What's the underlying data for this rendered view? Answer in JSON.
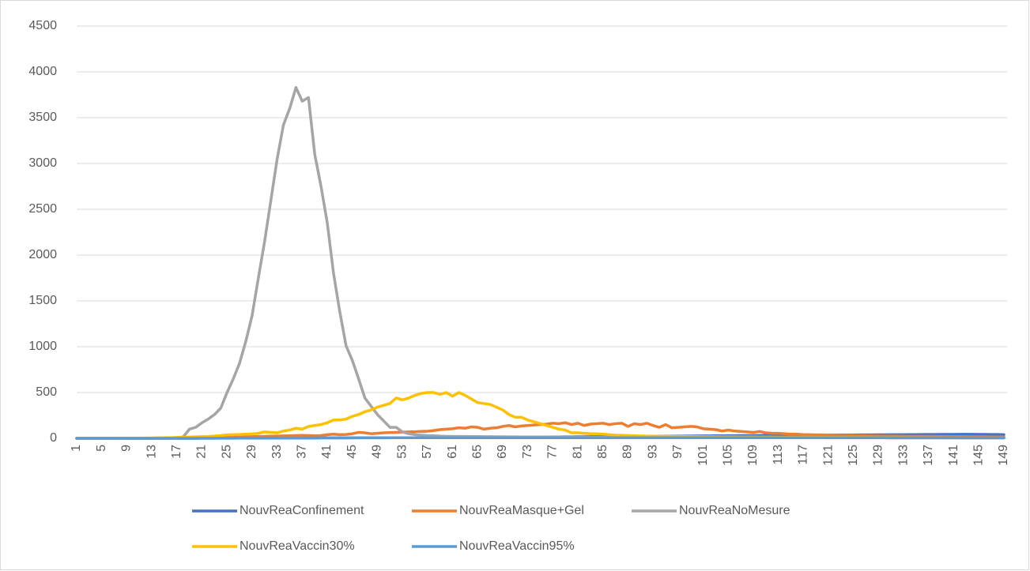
{
  "chart_data": {
    "type": "line",
    "categories": [
      1,
      null,
      null,
      null,
      5,
      null,
      null,
      null,
      9,
      null,
      null,
      null,
      13,
      null,
      null,
      null,
      17,
      null,
      null,
      null,
      21,
      null,
      null,
      null,
      25,
      null,
      null,
      null,
      29,
      null,
      null,
      null,
      33,
      null,
      null,
      null,
      37,
      null,
      null,
      null,
      41,
      null,
      null,
      null,
      45,
      null,
      null,
      null,
      49,
      null,
      null,
      null,
      53,
      null,
      null,
      null,
      57,
      null,
      null,
      null,
      61,
      null,
      null,
      null,
      65,
      null,
      null,
      null,
      69,
      null,
      null,
      null,
      73,
      null,
      null,
      null,
      77,
      null,
      null,
      null,
      81,
      null,
      null,
      null,
      85,
      null,
      null,
      null,
      89,
      null,
      null,
      null,
      93,
      null,
      null,
      null,
      97,
      null,
      null,
      null,
      101,
      null,
      null,
      null,
      105,
      null,
      null,
      null,
      109,
      null,
      null,
      null,
      113,
      null,
      null,
      null,
      117,
      null,
      null,
      null,
      121,
      null,
      null,
      null,
      125,
      null,
      null,
      null,
      129,
      null,
      null,
      null,
      133,
      null,
      null,
      null,
      137,
      null,
      null,
      null,
      141,
      null,
      null,
      null,
      145,
      null,
      null,
      null,
      149
    ],
    "series": [
      {
        "name": "NouvReaConfinement",
        "color": "#4472c4",
        "values": [
          0,
          0,
          0,
          0,
          0,
          0,
          0,
          0,
          0,
          0,
          0,
          0,
          0,
          0,
          0,
          0,
          0,
          0,
          0,
          0,
          1,
          1,
          1,
          1,
          1,
          1,
          2,
          2,
          2,
          2,
          2,
          2,
          3,
          3,
          3,
          3,
          3,
          3,
          3,
          4,
          4,
          4,
          4,
          4,
          5,
          5,
          5,
          5,
          5,
          5,
          6,
          6,
          6,
          6,
          6,
          7,
          7,
          7,
          7,
          8,
          8,
          8,
          9,
          9,
          10,
          10,
          10,
          11,
          11,
          12,
          12,
          12,
          13,
          13,
          14,
          14,
          15,
          15,
          16,
          16,
          17,
          17,
          18,
          18,
          19,
          19,
          20,
          20,
          21,
          21,
          22,
          22,
          23,
          23,
          24,
          24,
          25,
          25,
          26,
          26,
          27,
          27,
          28,
          28,
          29,
          29,
          30,
          30,
          31,
          31,
          32,
          32,
          33,
          33,
          34,
          34,
          35,
          35,
          35,
          36,
          36,
          36,
          37,
          37,
          37,
          38,
          38,
          38,
          39,
          39,
          40,
          40,
          40,
          41,
          41,
          42,
          42,
          42,
          43,
          43,
          43,
          44,
          44,
          44,
          43,
          43,
          42,
          42,
          40
        ]
      },
      {
        "name": "NouvReaMasque+Gel",
        "color": "#ed7d31",
        "values": [
          0,
          0,
          0,
          0,
          0,
          0,
          0,
          0,
          0,
          0,
          1,
          1,
          1,
          2,
          2,
          3,
          3,
          4,
          5,
          6,
          7,
          8,
          9,
          10,
          12,
          13,
          15,
          17,
          18,
          20,
          22,
          24,
          25,
          27,
          28,
          30,
          32,
          30,
          28,
          30,
          40,
          45,
          40,
          42,
          50,
          65,
          60,
          50,
          55,
          60,
          62,
          65,
          68,
          70,
          72,
          75,
          78,
          85,
          95,
          100,
          105,
          115,
          110,
          125,
          120,
          100,
          110,
          115,
          130,
          140,
          125,
          135,
          140,
          145,
          150,
          155,
          165,
          160,
          170,
          150,
          165,
          140,
          155,
          160,
          165,
          150,
          160,
          165,
          130,
          160,
          150,
          165,
          140,
          120,
          150,
          115,
          120,
          125,
          130,
          125,
          105,
          100,
          95,
          80,
          90,
          80,
          75,
          70,
          65,
          75,
          60,
          55,
          55,
          50,
          45,
          45,
          40,
          40,
          38,
          38,
          36,
          35,
          33,
          32,
          30,
          30,
          28,
          27,
          26,
          25,
          25,
          24,
          23,
          22,
          22,
          21,
          21,
          20,
          20,
          19,
          19,
          18,
          18,
          17,
          17,
          16,
          16,
          15,
          15
        ]
      },
      {
        "name": "NouvReaNoMesure",
        "color": "#a5a5a5",
        "values": [
          0,
          0,
          0,
          0,
          0,
          0,
          0,
          0,
          0,
          1,
          1,
          1,
          2,
          3,
          4,
          5,
          8,
          15,
          100,
          120,
          170,
          210,
          260,
          330,
          500,
          650,
          820,
          1060,
          1340,
          1750,
          2150,
          2600,
          3050,
          3420,
          3600,
          3830,
          3680,
          3720,
          3100,
          2750,
          2350,
          1800,
          1380,
          1010,
          850,
          650,
          440,
          350,
          260,
          190,
          120,
          120,
          70,
          50,
          40,
          35,
          30,
          28,
          25,
          22,
          21,
          20,
          20,
          19,
          19,
          18,
          18,
          17,
          17,
          16,
          16,
          15,
          15,
          15,
          14,
          14,
          14,
          13,
          13,
          13,
          12,
          12,
          12,
          12,
          11,
          11,
          11,
          11,
          10,
          10,
          10,
          10,
          10,
          9,
          9,
          9,
          9,
          9,
          8,
          8,
          8,
          8,
          8,
          8,
          8,
          7,
          7,
          7,
          7,
          7,
          7,
          7,
          6,
          6,
          6,
          6,
          6,
          6,
          6,
          6,
          5,
          5,
          5,
          5,
          5,
          5,
          5,
          5,
          5,
          5,
          4,
          4,
          4,
          4,
          4,
          4,
          4,
          4,
          4,
          4,
          4,
          3,
          3,
          3,
          3,
          3,
          3,
          3,
          3
        ]
      },
      {
        "name": "NouvReaVaccin30%",
        "color": "#ffc000",
        "values": [
          0,
          0,
          0,
          0,
          0,
          0,
          1,
          1,
          1,
          2,
          2,
          3,
          4,
          5,
          6,
          8,
          10,
          12,
          14,
          16,
          18,
          20,
          25,
          30,
          38,
          40,
          42,
          45,
          48,
          55,
          70,
          65,
          60,
          80,
          90,
          110,
          100,
          130,
          140,
          150,
          170,
          200,
          200,
          210,
          240,
          260,
          290,
          310,
          340,
          360,
          380,
          440,
          420,
          440,
          470,
          490,
          500,
          500,
          480,
          500,
          460,
          500,
          470,
          430,
          390,
          380,
          370,
          340,
          310,
          260,
          230,
          230,
          200,
          180,
          160,
          140,
          120,
          100,
          90,
          60,
          60,
          55,
          50,
          50,
          45,
          40,
          35,
          33,
          30,
          28,
          26,
          25,
          24,
          22,
          21,
          20,
          20,
          19,
          19,
          18,
          18,
          17,
          17,
          16,
          16,
          16,
          15,
          15,
          15,
          14,
          14,
          14,
          13,
          13,
          13,
          12,
          12,
          12,
          12,
          11,
          11,
          11,
          11,
          10,
          10,
          10,
          10,
          10,
          9,
          9,
          9,
          9,
          9,
          8,
          8,
          8,
          8,
          8,
          8,
          7,
          7,
          7,
          7,
          7,
          7,
          6,
          6,
          6,
          6
        ]
      },
      {
        "name": "NouvReaVaccin95%",
        "color": "#5b9bd5",
        "values": [
          0,
          0,
          0,
          0,
          0,
          0,
          0,
          0,
          0,
          0,
          0,
          0,
          0,
          0,
          0,
          0,
          0,
          0,
          0,
          0,
          1,
          1,
          1,
          2,
          2,
          2,
          2,
          3,
          3,
          3,
          3,
          3,
          4,
          4,
          4,
          4,
          4,
          5,
          5,
          5,
          5,
          5,
          5,
          5,
          5,
          6,
          6,
          6,
          6,
          6,
          6,
          6,
          6,
          6,
          6,
          6,
          6,
          6,
          6,
          6,
          6,
          6,
          6,
          6,
          6,
          7,
          7,
          7,
          7,
          7,
          7,
          7,
          7,
          7,
          7,
          7,
          7,
          7,
          7,
          7,
          7,
          7,
          7,
          7,
          7,
          7,
          7,
          7,
          7,
          7,
          7,
          7,
          7,
          7,
          7,
          7,
          7,
          7,
          7,
          7,
          7,
          7,
          7,
          7,
          7,
          6,
          6,
          6,
          6,
          6,
          6,
          6,
          6,
          6,
          6,
          6,
          6,
          6,
          6,
          6,
          6,
          6,
          6,
          6,
          6,
          6,
          6,
          6,
          6,
          6,
          5,
          5,
          5,
          5,
          5,
          5,
          5,
          5,
          5,
          5,
          5,
          5,
          5,
          5,
          5,
          5,
          5,
          5,
          5
        ]
      }
    ],
    "ylim": [
      0,
      4500
    ],
    "yticks": [
      0,
      500,
      1000,
      1500,
      2000,
      2500,
      3000,
      3500,
      4000,
      4500
    ],
    "grid": true
  }
}
